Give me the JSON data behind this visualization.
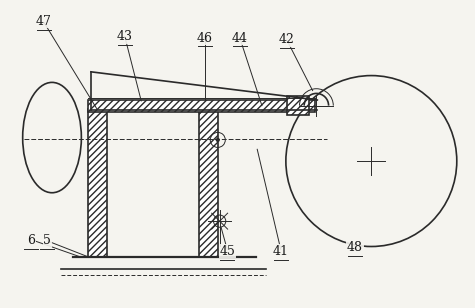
{
  "bg_color": "#f5f4ef",
  "line_color": "#2a2a2a",
  "label_color": "#1a1a1a",
  "label_fontsize": 9,
  "lw_main": 1.2,
  "lw_thin": 0.7,
  "lw_thick": 1.6
}
